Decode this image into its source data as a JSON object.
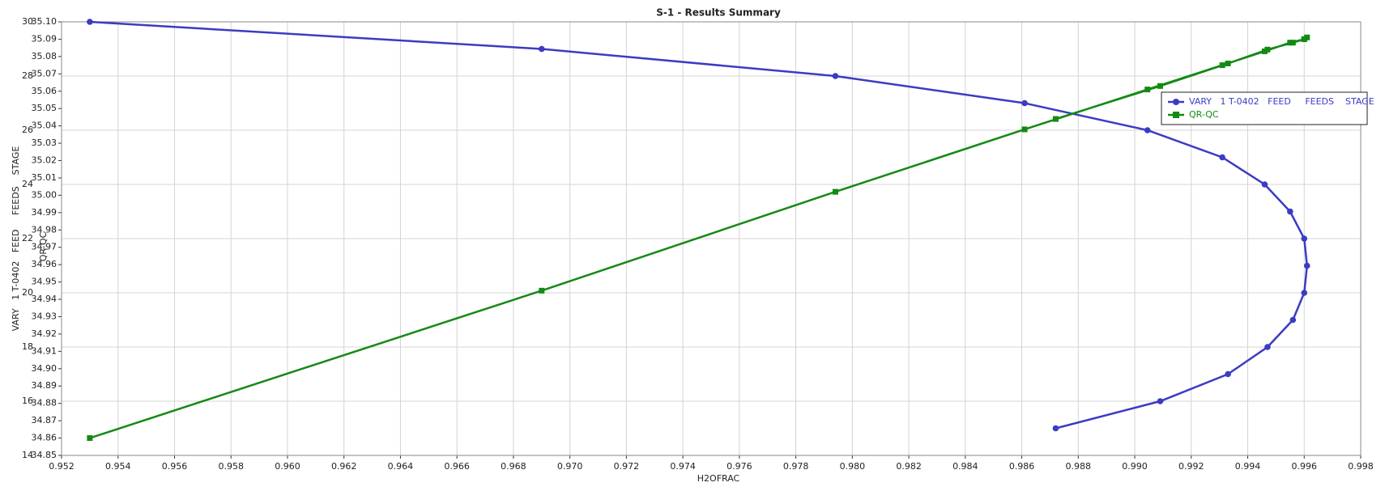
{
  "chart_data": {
    "type": "line",
    "title": "S-1 - Results Summary",
    "x_label": "H2OFRAC",
    "y_label": "VARY   1 T-0402   FEED     FEEDS    STAGE",
    "y2_label": "QR-QC",
    "x": [
      0.953,
      0.969,
      0.9794,
      0.9861,
      0.99045,
      0.9931,
      0.9946,
      0.9955,
      0.996,
      0.9961,
      0.996,
      0.9956,
      0.9947,
      0.9933,
      0.9909,
      0.9872
    ],
    "series": [
      {
        "name": "VARY   1 T-0402   FEED     FEEDS    STAGE",
        "color": "#3b3bc4",
        "marker": "circle",
        "values": [
          30,
          29,
          28,
          27,
          26,
          25,
          24,
          23,
          22,
          21,
          20,
          19,
          18,
          17,
          16,
          15
        ]
      },
      {
        "name": "QR-QC",
        "color": "#138a13",
        "marker": "square",
        "axis": "y2",
        "values": [
          34.86,
          34.945,
          35.002,
          35.038,
          35.061,
          35.075,
          35.083,
          35.088,
          35.09,
          35.091,
          35.09,
          35.088,
          35.084,
          35.076,
          35.063,
          35.044
        ]
      }
    ],
    "xlim": [
      0.952,
      0.998
    ],
    "xticks": [
      0.952,
      0.954,
      0.956,
      0.958,
      {
        "value": 0.96,
        "label": "0.960"
      },
      0.962,
      0.964,
      0.966,
      0.968,
      {
        "value": 0.97,
        "label": "0.970"
      },
      0.972,
      0.974,
      0.976,
      0.978,
      {
        "value": 0.98,
        "label": "0.980"
      },
      0.982,
      0.984,
      0.986,
      0.988,
      {
        "value": 0.99,
        "label": "0.990"
      },
      0.992,
      0.994,
      0.996,
      0.998
    ],
    "ylim": [
      14,
      30
    ],
    "yticks": [
      14,
      16,
      18,
      20,
      22,
      24,
      26,
      28,
      30
    ],
    "y2lim": [
      34.85,
      35.1
    ],
    "y2ticks": [
      34.85,
      34.86,
      34.87,
      34.88,
      34.89,
      {
        "value": 34.9,
        "label": "34.90"
      },
      34.91,
      34.92,
      34.93,
      34.94,
      34.95,
      34.96,
      34.97,
      34.98,
      34.99,
      {
        "value": 35.0,
        "label": "35.00"
      },
      35.01,
      35.02,
      35.03,
      35.04,
      35.05,
      35.06,
      35.07,
      35.08,
      35.09,
      {
        "value": 35.1,
        "label": "35.10"
      }
    ],
    "grid": true,
    "legend": "upper right"
  }
}
